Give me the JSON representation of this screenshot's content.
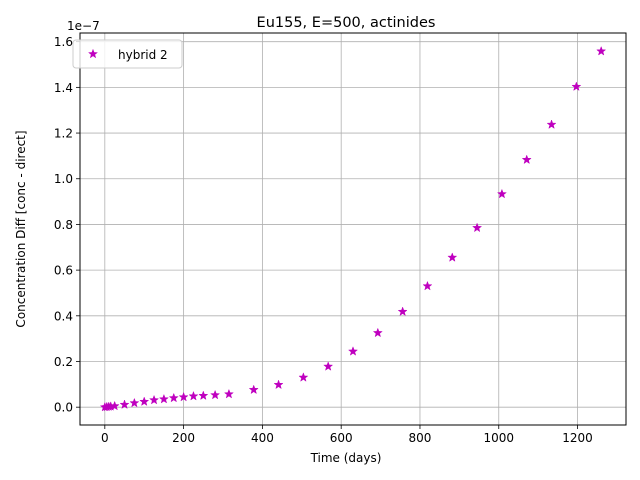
{
  "chart_data": {
    "type": "scatter",
    "title": "Eu155, E=500, actinides",
    "xlabel": "Time (days)",
    "ylabel": "Concentration Diff [conc - direct]",
    "y_offset_label": "1e−7",
    "xlim": [
      -63,
      1323
    ],
    "ylim": [
      -0.078,
      1.638
    ],
    "xticks": [
      0,
      200,
      400,
      600,
      800,
      1000,
      1200
    ],
    "xtick_labels": [
      "0",
      "200",
      "400",
      "600",
      "800",
      "1000",
      "1200"
    ],
    "yticks": [
      0.0,
      0.2,
      0.4,
      0.6,
      0.8,
      1.0,
      1.2,
      1.4,
      1.6
    ],
    "ytick_labels": [
      "0.0",
      "0.2",
      "0.4",
      "0.6",
      "0.8",
      "1.0",
      "1.2",
      "1.4",
      "1.6"
    ],
    "grid": true,
    "legend_position": "upper left",
    "series": [
      {
        "name": "hybrid 2",
        "color": "#bf00bf",
        "marker": "star",
        "points": [
          [
            0,
            0.0
          ],
          [
            5,
            0.001
          ],
          [
            10,
            0.002
          ],
          [
            15,
            0.003
          ],
          [
            25,
            0.005
          ],
          [
            50,
            0.011
          ],
          [
            75,
            0.018
          ],
          [
            100,
            0.024
          ],
          [
            125,
            0.031
          ],
          [
            150,
            0.035
          ],
          [
            175,
            0.04
          ],
          [
            200,
            0.044
          ],
          [
            225,
            0.048
          ],
          [
            250,
            0.05
          ],
          [
            280,
            0.053
          ],
          [
            315,
            0.057
          ],
          [
            378,
            0.076
          ],
          [
            441,
            0.098
          ],
          [
            504,
            0.13
          ],
          [
            567,
            0.178
          ],
          [
            630,
            0.244
          ],
          [
            693,
            0.325
          ],
          [
            756,
            0.418
          ],
          [
            819,
            0.53
          ],
          [
            882,
            0.655
          ],
          [
            945,
            0.785
          ],
          [
            1008,
            0.933
          ],
          [
            1071,
            1.083
          ],
          [
            1134,
            1.237
          ],
          [
            1197,
            1.403
          ],
          [
            1260,
            1.558
          ]
        ]
      }
    ]
  }
}
